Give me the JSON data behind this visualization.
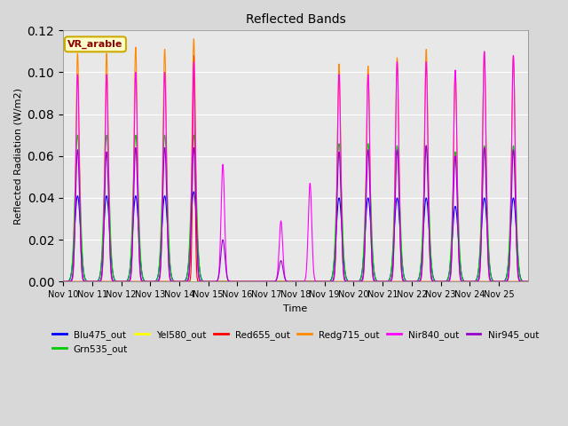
{
  "title": "Reflected Bands",
  "xlabel": "Time",
  "ylabel": "Reflected Radiation (W/m2)",
  "ylim": [
    0,
    0.12
  ],
  "annotation": "VR_arable",
  "series": [
    {
      "name": "Blu475_out",
      "color": "#0000ff"
    },
    {
      "name": "Grn535_out",
      "color": "#00cc00"
    },
    {
      "name": "Yel580_out",
      "color": "#ffff00"
    },
    {
      "name": "Red655_out",
      "color": "#ff0000"
    },
    {
      "name": "Redg715_out",
      "color": "#ff8800"
    },
    {
      "name": "Nir840_out",
      "color": "#ff00ff"
    },
    {
      "name": "Nir945_out",
      "color": "#9900cc"
    }
  ],
  "x_tick_labels": [
    "Nov 10",
    "Nov 11",
    "Nov 12",
    "Nov 13",
    "Nov 14",
    "Nov 15",
    "Nov 16",
    "Nov 17",
    "Nov 18",
    "Nov 19",
    "Nov 20",
    "Nov 21",
    "Nov 22",
    "Nov 23",
    "Nov 24",
    "Nov 25"
  ],
  "n_days": 16,
  "figsize": [
    6.4,
    4.8
  ],
  "dpi": 100,
  "background_color": "#d8d8d8",
  "plot_bg_color": "#e8e8e8",
  "day_peaks": {
    "Blu475_out": [
      0.041,
      0.041,
      0.041,
      0.041,
      0.043,
      0.0,
      0.0,
      0.0,
      0.0,
      0.04,
      0.04,
      0.04,
      0.04,
      0.036,
      0.04,
      0.04
    ],
    "Grn535_out": [
      0.07,
      0.07,
      0.07,
      0.07,
      0.07,
      0.0,
      0.0,
      0.0,
      0.0,
      0.066,
      0.066,
      0.065,
      0.065,
      0.062,
      0.065,
      0.065
    ],
    "Yel580_out": [
      0.0,
      0.0,
      0.0,
      0.0,
      0.0,
      0.0,
      0.0,
      0.0,
      0.0,
      0.0,
      0.0,
      0.0,
      0.0,
      0.0,
      0.0,
      0.0
    ],
    "Red655_out": [
      0.0,
      0.0,
      0.0,
      0.0,
      0.108,
      0.0,
      0.0,
      0.0,
      0.0,
      0.0,
      0.0,
      0.0,
      0.0,
      0.0,
      0.0,
      0.0
    ],
    "Redg715_out": [
      0.109,
      0.109,
      0.112,
      0.111,
      0.116,
      0.0,
      0.0,
      0.0,
      0.0,
      0.104,
      0.103,
      0.107,
      0.111,
      0.101,
      0.11,
      0.108
    ],
    "Nir840_out": [
      0.099,
      0.099,
      0.1,
      0.1,
      0.105,
      0.056,
      0.0,
      0.029,
      0.047,
      0.099,
      0.099,
      0.105,
      0.105,
      0.101,
      0.11,
      0.108
    ],
    "Nir945_out": [
      0.063,
      0.062,
      0.064,
      0.064,
      0.064,
      0.02,
      0.0,
      0.01,
      0.0,
      0.062,
      0.063,
      0.063,
      0.065,
      0.06,
      0.064,
      0.063
    ]
  }
}
